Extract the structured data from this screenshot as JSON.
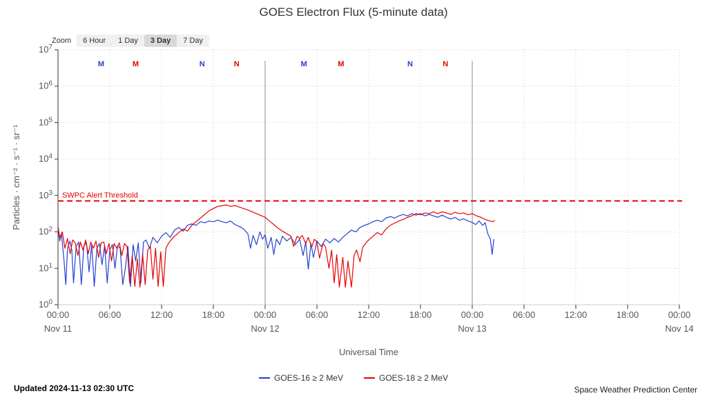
{
  "page": {
    "title": "GOES Electron Flux (5-minute data)",
    "updated": "Updated 2024-11-13 02:30 UTC",
    "credit": "Space Weather Prediction Center"
  },
  "zoom": {
    "label": "Zoom",
    "buttons": [
      {
        "label": "6 Hour",
        "active": false
      },
      {
        "label": "1 Day",
        "active": false
      },
      {
        "label": "3 Day",
        "active": true
      },
      {
        "label": "7 Day",
        "active": false
      }
    ]
  },
  "chart_data": {
    "type": "line",
    "title": "GOES Electron Flux (5-minute data)",
    "xlabel": "Universal Time",
    "ylabel": "Particles · cm⁻² · s⁻¹ · sr⁻¹",
    "y_scale": "log10",
    "ylim_log10": [
      0,
      7
    ],
    "x_hours_range": [
      0,
      72
    ],
    "grid": true,
    "colors": {
      "goes16": "#2341d0",
      "goes18": "#e60000",
      "axis_text": "#555555",
      "gridline": "#cccccc",
      "day_line": "#888888"
    },
    "x_ticks": [
      {
        "hour": 0,
        "time": "00:00",
        "date": "Nov 11"
      },
      {
        "hour": 6,
        "time": "06:00"
      },
      {
        "hour": 12,
        "time": "12:00"
      },
      {
        "hour": 18,
        "time": "18:00"
      },
      {
        "hour": 24,
        "time": "00:00",
        "date": "Nov 12"
      },
      {
        "hour": 30,
        "time": "06:00"
      },
      {
        "hour": 36,
        "time": "12:00"
      },
      {
        "hour": 42,
        "time": "18:00"
      },
      {
        "hour": 48,
        "time": "00:00",
        "date": "Nov 13"
      },
      {
        "hour": 54,
        "time": "06:00"
      },
      {
        "hour": 60,
        "time": "12:00"
      },
      {
        "hour": 66,
        "time": "18:00"
      },
      {
        "hour": 72,
        "time": "00:00",
        "date": "Nov 14"
      }
    ],
    "y_tick_exponents": [
      0,
      1,
      2,
      3,
      4,
      5,
      6,
      7
    ],
    "day_boundaries_hours": [
      24,
      48
    ],
    "threshold": {
      "label": "SWPC Alert Threshold",
      "log10_value": 2.85,
      "color": "#e60000"
    },
    "flare_markers": [
      {
        "label": "M",
        "color": "#2341d0",
        "hour": 5.0
      },
      {
        "label": "M",
        "color": "#e60000",
        "hour": 9.0
      },
      {
        "label": "N",
        "color": "#2341d0",
        "hour": 16.7
      },
      {
        "label": "N",
        "color": "#e60000",
        "hour": 20.7
      },
      {
        "label": "M",
        "color": "#2341d0",
        "hour": 28.5
      },
      {
        "label": "M",
        "color": "#e60000",
        "hour": 32.8
      },
      {
        "label": "N",
        "color": "#2341d0",
        "hour": 40.8
      },
      {
        "label": "N",
        "color": "#e60000",
        "hour": 44.9
      }
    ],
    "legend": [
      "GOES-16 ≥ 2 MeV",
      "GOES-18 ≥ 2 MeV"
    ],
    "series": [
      {
        "name": "GOES-16 ≥ 2 MeV",
        "color": "#2341d0",
        "points": [
          [
            0,
            2.08
          ],
          [
            0.2,
            1.75
          ],
          [
            0.4,
            1.95
          ],
          [
            0.7,
            1.2
          ],
          [
            0.9,
            0.55
          ],
          [
            1.1,
            1.55
          ],
          [
            1.4,
            1.75
          ],
          [
            1.6,
            1.5
          ],
          [
            1.8,
            0.6
          ],
          [
            2.1,
            1.6
          ],
          [
            2.4,
            1.72
          ],
          [
            2.7,
            0.55
          ],
          [
            3,
            1.62
          ],
          [
            3.3,
            1.7
          ],
          [
            3.6,
            0.9
          ],
          [
            3.9,
            1.65
          ],
          [
            4.2,
            0.5
          ],
          [
            4.5,
            1.55
          ],
          [
            4.8,
            1.68
          ],
          [
            5.1,
            1.1
          ],
          [
            5.4,
            1.62
          ],
          [
            5.7,
            0.6
          ],
          [
            6,
            1.5
          ],
          [
            6.3,
            1.65
          ],
          [
            6.6,
            1.0
          ],
          [
            6.9,
            1.62
          ],
          [
            7.2,
            1.55
          ],
          [
            7.5,
            0.55
          ],
          [
            7.8,
            1.0
          ],
          [
            8.1,
            1.6
          ],
          [
            8.4,
            0.5
          ],
          [
            8.7,
            1.65
          ],
          [
            9,
            1.2
          ],
          [
            9.3,
            1.7
          ],
          [
            9.6,
            0.6
          ],
          [
            9.9,
            1.72
          ],
          [
            10.2,
            1.78
          ],
          [
            10.6,
            1.55
          ],
          [
            11,
            1.85
          ],
          [
            11.5,
            1.7
          ],
          [
            12,
            1.88
          ],
          [
            12.5,
            1.98
          ],
          [
            13,
            1.85
          ],
          [
            13.5,
            2.05
          ],
          [
            14,
            2.12
          ],
          [
            14.5,
            2.02
          ],
          [
            15,
            2.18
          ],
          [
            15.5,
            2.22
          ],
          [
            16,
            2.18
          ],
          [
            16.5,
            2.28
          ],
          [
            17,
            2.25
          ],
          [
            17.5,
            2.3
          ],
          [
            18,
            2.28
          ],
          [
            18.5,
            2.32
          ],
          [
            19,
            2.28
          ],
          [
            19.5,
            2.25
          ],
          [
            20,
            2.3
          ],
          [
            20.5,
            2.2
          ],
          [
            21,
            2.15
          ],
          [
            21.5,
            2.08
          ],
          [
            22,
            1.95
          ],
          [
            22.3,
            1.55
          ],
          [
            22.6,
            1.9
          ],
          [
            23,
            1.65
          ],
          [
            23.4,
            2.0
          ],
          [
            23.7,
            1.8
          ],
          [
            24,
            1.92
          ],
          [
            24.3,
            1.55
          ],
          [
            24.7,
            1.85
          ],
          [
            25,
            1.38
          ],
          [
            25.3,
            1.8
          ],
          [
            25.7,
            1.65
          ],
          [
            26,
            1.88
          ],
          [
            26.5,
            1.75
          ],
          [
            27,
            1.85
          ],
          [
            27.5,
            1.65
          ],
          [
            28,
            1.8
          ],
          [
            28.4,
            1.35
          ],
          [
            28.7,
            1.72
          ],
          [
            29,
            0.98
          ],
          [
            29.3,
            1.68
          ],
          [
            29.6,
            1.3
          ],
          [
            30,
            1.75
          ],
          [
            30.5,
            1.6
          ],
          [
            31,
            1.8
          ],
          [
            31.5,
            1.7
          ],
          [
            32,
            1.82
          ],
          [
            32.5,
            1.72
          ],
          [
            33,
            1.85
          ],
          [
            33.5,
            1.95
          ],
          [
            34,
            2.05
          ],
          [
            34.5,
            2.0
          ],
          [
            35,
            2.12
          ],
          [
            35.5,
            2.18
          ],
          [
            36,
            2.22
          ],
          [
            36.5,
            2.28
          ],
          [
            37,
            2.32
          ],
          [
            37.5,
            2.28
          ],
          [
            38,
            2.38
          ],
          [
            38.5,
            2.42
          ],
          [
            39,
            2.38
          ],
          [
            39.5,
            2.44
          ],
          [
            40,
            2.48
          ],
          [
            40.5,
            2.44
          ],
          [
            41,
            2.5
          ],
          [
            41.5,
            2.46
          ],
          [
            42,
            2.5
          ],
          [
            42.5,
            2.44
          ],
          [
            43,
            2.48
          ],
          [
            43.5,
            2.44
          ],
          [
            44,
            2.4
          ],
          [
            44.5,
            2.46
          ],
          [
            45,
            2.4
          ],
          [
            45.5,
            2.35
          ],
          [
            46,
            2.4
          ],
          [
            46.5,
            2.32
          ],
          [
            47,
            2.36
          ],
          [
            47.5,
            2.3
          ],
          [
            48,
            2.26
          ],
          [
            48.4,
            2.2
          ],
          [
            48.8,
            2.3
          ],
          [
            49.2,
            2.18
          ],
          [
            49.5,
            2.25
          ],
          [
            49.8,
            1.95
          ],
          [
            50.1,
            1.8
          ],
          [
            50.3,
            1.38
          ],
          [
            50.5,
            1.8
          ]
        ]
      },
      {
        "name": "GOES-18 ≥ 2 MeV",
        "color": "#e60000",
        "points": [
          [
            0,
            2.15
          ],
          [
            0.2,
            1.85
          ],
          [
            0.5,
            2.0
          ],
          [
            0.8,
            1.55
          ],
          [
            1.1,
            1.82
          ],
          [
            1.4,
            1.4
          ],
          [
            1.7,
            1.78
          ],
          [
            2,
            1.7
          ],
          [
            2.3,
            1.35
          ],
          [
            2.6,
            1.72
          ],
          [
            2.9,
            1.5
          ],
          [
            3.2,
            1.78
          ],
          [
            3.5,
            1.4
          ],
          [
            3.8,
            1.72
          ],
          [
            4.1,
            1.55
          ],
          [
            4.4,
            1.75
          ],
          [
            4.7,
            1.3
          ],
          [
            5,
            1.7
          ],
          [
            5.3,
            1.72
          ],
          [
            5.6,
            1.4
          ],
          [
            5.9,
            1.68
          ],
          [
            6.2,
            1.2
          ],
          [
            6.5,
            1.68
          ],
          [
            6.8,
            1.55
          ],
          [
            7.1,
            1.7
          ],
          [
            7.4,
            1.35
          ],
          [
            7.7,
            1.68
          ],
          [
            8,
            1.6
          ],
          [
            8.3,
            0.6
          ],
          [
            8.6,
            1.35
          ],
          [
            8.9,
            0.5
          ],
          [
            9.2,
            1.25
          ],
          [
            9.5,
            0.48
          ],
          [
            9.8,
            1.4
          ],
          [
            10.1,
            0.55
          ],
          [
            10.4,
            1.5
          ],
          [
            10.7,
            1.6
          ],
          [
            11,
            0.7
          ],
          [
            11.3,
            1.55
          ],
          [
            11.6,
            0.5
          ],
          [
            11.9,
            1.45
          ],
          [
            12.2,
            0.5
          ],
          [
            12.5,
            1.55
          ],
          [
            12.8,
            1.68
          ],
          [
            13.1,
            1.78
          ],
          [
            13.5,
            1.88
          ],
          [
            14,
            1.98
          ],
          [
            14.5,
            2.08
          ],
          [
            15,
            2.02
          ],
          [
            15.5,
            2.18
          ],
          [
            16,
            2.28
          ],
          [
            16.5,
            2.38
          ],
          [
            17,
            2.48
          ],
          [
            17.5,
            2.58
          ],
          [
            18,
            2.64
          ],
          [
            18.5,
            2.7
          ],
          [
            19,
            2.72
          ],
          [
            19.5,
            2.74
          ],
          [
            20,
            2.7
          ],
          [
            20.5,
            2.72
          ],
          [
            21,
            2.68
          ],
          [
            21.5,
            2.64
          ],
          [
            22,
            2.6
          ],
          [
            22.5,
            2.55
          ],
          [
            23,
            2.5
          ],
          [
            23.5,
            2.45
          ],
          [
            24,
            2.4
          ],
          [
            24.5,
            2.3
          ],
          [
            25,
            2.2
          ],
          [
            25.5,
            2.1
          ],
          [
            26,
            2.02
          ],
          [
            26.5,
            1.95
          ],
          [
            27,
            1.88
          ],
          [
            27.3,
            1.6
          ],
          [
            27.7,
            1.88
          ],
          [
            28,
            1.82
          ],
          [
            28.3,
            1.9
          ],
          [
            28.7,
            1.68
          ],
          [
            29,
            1.85
          ],
          [
            29.4,
            1.58
          ],
          [
            29.7,
            1.8
          ],
          [
            30,
            1.72
          ],
          [
            30.3,
            1.28
          ],
          [
            30.7,
            1.68
          ],
          [
            31,
            1.58
          ],
          [
            31.4,
            1.0
          ],
          [
            31.7,
            1.5
          ],
          [
            32,
            0.6
          ],
          [
            32.3,
            1.38
          ],
          [
            32.6,
            0.48
          ],
          [
            33,
            1.3
          ],
          [
            33.3,
            0.48
          ],
          [
            33.6,
            1.2
          ],
          [
            34,
            0.48
          ],
          [
            34.3,
            1.35
          ],
          [
            34.6,
            1.5
          ],
          [
            35,
            1.18
          ],
          [
            35.3,
            1.58
          ],
          [
            35.7,
            1.7
          ],
          [
            36,
            1.78
          ],
          [
            36.5,
            1.88
          ],
          [
            37,
            1.98
          ],
          [
            37.5,
            1.92
          ],
          [
            38,
            2.08
          ],
          [
            38.5,
            2.18
          ],
          [
            39,
            2.24
          ],
          [
            39.5,
            2.3
          ],
          [
            40,
            2.34
          ],
          [
            40.5,
            2.4
          ],
          [
            41,
            2.44
          ],
          [
            41.5,
            2.5
          ],
          [
            42,
            2.47
          ],
          [
            42.5,
            2.52
          ],
          [
            43,
            2.5
          ],
          [
            43.5,
            2.55
          ],
          [
            44,
            2.5
          ],
          [
            44.5,
            2.55
          ],
          [
            45,
            2.52
          ],
          [
            45.5,
            2.48
          ],
          [
            46,
            2.54
          ],
          [
            46.5,
            2.5
          ],
          [
            47,
            2.52
          ],
          [
            47.5,
            2.47
          ],
          [
            48,
            2.5
          ],
          [
            48.5,
            2.44
          ],
          [
            49,
            2.4
          ],
          [
            49.5,
            2.34
          ],
          [
            50,
            2.3
          ],
          [
            50.4,
            2.28
          ],
          [
            50.6,
            2.32
          ]
        ]
      }
    ]
  }
}
